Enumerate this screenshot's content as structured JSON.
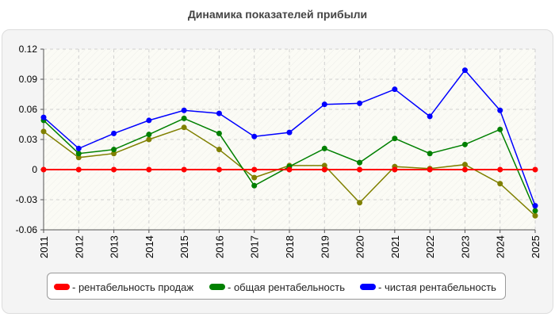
{
  "chart_data": {
    "type": "line",
    "title": "Динамика показателей прибыли",
    "x": [
      "2011",
      "2012",
      "2013",
      "2014",
      "2015",
      "2016",
      "2017",
      "2018",
      "2019",
      "2020",
      "2021",
      "2022",
      "2023",
      "2024",
      "2025"
    ],
    "ylim": [
      -0.06,
      0.12
    ],
    "y_ticks": [
      "0.12",
      "0.09",
      "0.06",
      "0.03",
      "0",
      "-0.03",
      "-0.06"
    ],
    "grid": true,
    "legend_position": "bottom",
    "series": [
      {
        "name": "рентабельность продаж",
        "color": "#ff0000",
        "values": [
          0,
          0,
          0,
          0,
          0,
          0,
          0,
          0,
          0,
          0,
          0,
          0,
          0,
          0,
          0
        ]
      },
      {
        "name": "общая рентабельность",
        "color": "#008000",
        "values": [
          0.049,
          0.016,
          0.02,
          0.035,
          0.051,
          0.036,
          -0.016,
          0.003,
          0.021,
          0.007,
          0.031,
          0.016,
          0.025,
          0.04,
          -0.041
        ]
      },
      {
        "name": "чистая рентабельность",
        "color": "#0000ff",
        "values": [
          0.052,
          0.021,
          0.036,
          0.049,
          0.059,
          0.056,
          0.033,
          0.037,
          0.065,
          0.066,
          0.08,
          0.053,
          0.099,
          0.059,
          -0.036
        ]
      },
      {
        "color": "#808000",
        "values": [
          0.038,
          0.012,
          0.016,
          0.03,
          0.042,
          0.02,
          -0.008,
          0.004,
          0.004,
          -0.033,
          0.003,
          0.001,
          0.005,
          -0.014,
          -0.046
        ]
      }
    ],
    "legend": [
      {
        "label": "- рентабельность продаж",
        "color": "#ff0000"
      },
      {
        "label": "- общая рентабельность",
        "color": "#008000"
      },
      {
        "label": "- чистая рентабельность",
        "color": "#0000ff"
      }
    ]
  }
}
